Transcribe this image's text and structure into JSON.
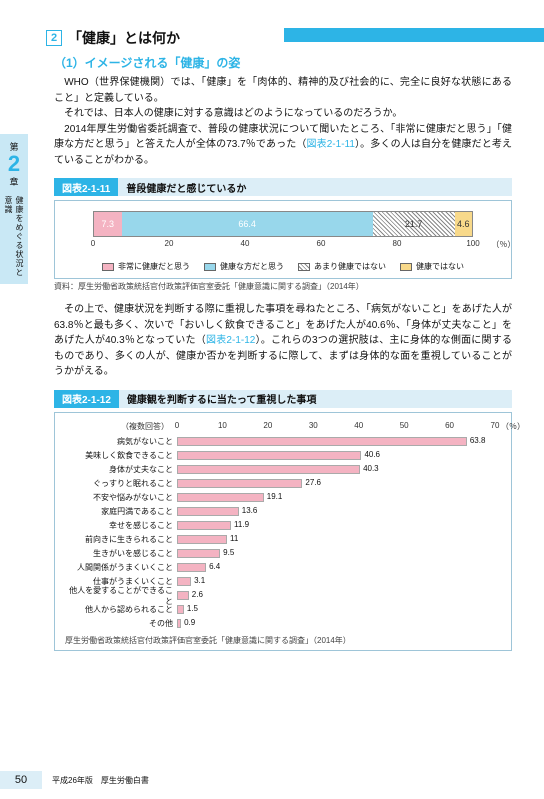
{
  "topbar": {},
  "sidetab": {
    "dai": "第",
    "ch": "2",
    "sho": "章",
    "vtext": "健康をめぐる状況と意識"
  },
  "section": {
    "num": "2",
    "title": "「健康」とは何か"
  },
  "subhead": "（1）イメージされる「健康」の姿",
  "p1": "　WHO（世界保健機関）では、「健康」を「肉体的、精神的及び社会的に、完全に良好な状態にあること」と定義している。",
  "p2": "　それでは、日本人の健康に対する意識はどのようになっているのだろうか。",
  "p3a": "　2014年厚生労働省委託調査で、普段の健康状況について聞いたところ、「非常に健康だと思う」「健康な方だと思う」と答えた人が全体の73.7％であった（",
  "p3link": "図表2-1-11",
  "p3b": "）。多くの人は自分を健康だと考えていることがわかる。",
  "fig1": {
    "label": "図表2-1-11",
    "title": "普段健康だと感じているか",
    "segments": [
      {
        "val": "7.3",
        "pct": 7.3,
        "color": "#f4b3c2"
      },
      {
        "val": "66.4",
        "pct": 66.4,
        "color": "#98d7eb"
      },
      {
        "val": "21.7",
        "pct": 21.7,
        "color": "#ffffff",
        "hatch": true,
        "textcolor": "#333"
      },
      {
        "val": "4.6",
        "pct": 4.6,
        "color": "#f8d98a",
        "textcolor": "#333"
      }
    ],
    "ticks": [
      0,
      20,
      40,
      60,
      80,
      100
    ],
    "tickunit": "（％）",
    "legend": [
      {
        "sw": "#f4b3c2",
        "label": "非常に健康だと思う"
      },
      {
        "sw": "#98d7eb",
        "label": "健康な方だと思う"
      },
      {
        "sw": "hatch",
        "label": "あまり健康ではない"
      },
      {
        "sw": "#f8d98a",
        "label": "健康ではない"
      }
    ],
    "source": "資料：厚生労働省政策統括官付政策評価官室委託「健康意識に関する調査」（2014年）"
  },
  "p4a": "　その上で、健康状況を判断する際に重視した事項を尋ねたところ、「病気がないこと」をあげた人が63.8％と最も多く、次いで「おいしく飲食できること」をあげた人が40.6％、「身体が丈夫なこと」をあげた人が40.3％となっていた（",
  "p4link": "図表2-1-12",
  "p4b": "）。これらの3つの選択肢は、主に身体的な側面に関するものであり、多くの人が、健康か否かを判断するに際して、まずは身体的な面を重視していることがうかがえる。",
  "fig2": {
    "label": "図表2-1-12",
    "title": "健康観を判断するに当たって重視した事項",
    "note": "（複数回答）",
    "xticks": [
      0,
      10,
      20,
      30,
      40,
      50,
      60,
      70
    ],
    "xunit": "（％）",
    "xmax": 70,
    "rows": [
      {
        "label": "病気がないこと",
        "val": 63.8
      },
      {
        "label": "美味しく飲食できること",
        "val": 40.6
      },
      {
        "label": "身体が丈夫なこと",
        "val": 40.3
      },
      {
        "label": "ぐっすりと眠れること",
        "val": 27.6
      },
      {
        "label": "不安や悩みがないこと",
        "val": 19.1
      },
      {
        "label": "家庭円満であること",
        "val": 13.6
      },
      {
        "label": "幸せを感じること",
        "val": 11.9
      },
      {
        "label": "前向きに生きられること",
        "val": 11
      },
      {
        "label": "生きがいを感じること",
        "val": 9.5
      },
      {
        "label": "人間関係がうまくいくこと",
        "val": 6.4
      },
      {
        "label": "仕事がうまくいくこと",
        "val": 3.1
      },
      {
        "label": "他人を愛することができること",
        "val": 2.6
      },
      {
        "label": "他人から認められること",
        "val": 1.5
      },
      {
        "label": "その他",
        "val": 0.9
      }
    ],
    "source": "厚生労働省政策統括官付政策評価官室委託「健康意識に関する調査」（2014年）"
  },
  "footer": {
    "page": "50",
    "label": "平成26年版　厚生労働白書"
  }
}
